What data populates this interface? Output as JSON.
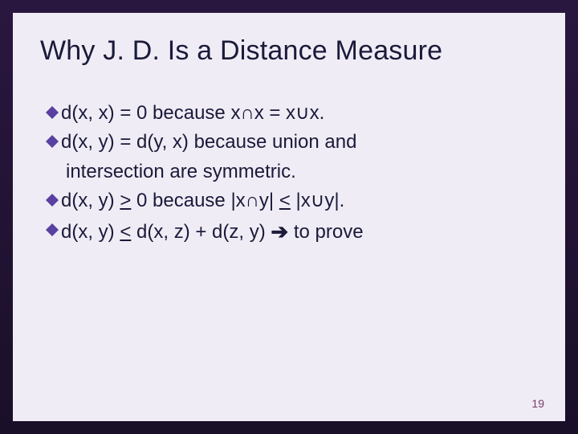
{
  "slide": {
    "title": "Why J. D. Is a Distance Measure",
    "page_number": "19",
    "background_color": "#f0ecf5",
    "title_color": "#1a1a3a",
    "text_color": "#1a1a3a",
    "bullet_color": "#5841a0",
    "pagenum_color": "#7a3a6a",
    "title_fontsize": 34,
    "body_fontsize": 24,
    "bullets": [
      {
        "text": "d(x, x) = 0 because x∩x = x∪x.",
        "continuation": ""
      },
      {
        "text": "d(x, y) = d(y, x) because union and",
        "continuation": "intersection are symmetric."
      },
      {
        "html": "d(x, y) <span class=\"under\">&gt;</span> 0 because |x∩y| <span class=\"under\">&lt;</span> |x∪y|.",
        "plain": "d(x, y) > 0 because |x∩y| < |x∪y|."
      },
      {
        "html": "d(x, y) <span class=\"under\">&lt;</span> d(x, z) + d(z, y) <span class=\"arrow\">➔</span> to prove",
        "plain": "d(x, y) < d(x, z) + d(z, y) → to prove"
      }
    ]
  }
}
